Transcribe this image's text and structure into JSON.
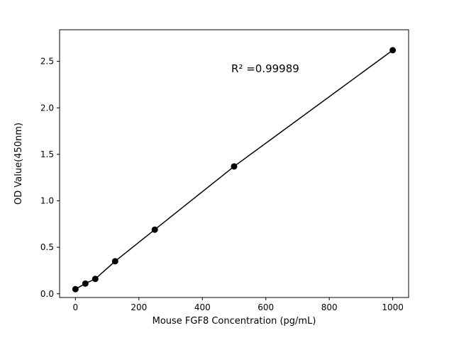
{
  "figure": {
    "background": "#ffffff",
    "frame_color": "#000000"
  },
  "chart_data": {
    "type": "scatter",
    "x": [
      0,
      31.25,
      62.5,
      125,
      250,
      500,
      1000
    ],
    "y": [
      0.05,
      0.11,
      0.16,
      0.35,
      0.69,
      1.37,
      2.62
    ],
    "title": "",
    "xlabel": "Mouse FGF8 Concentration (pg/mL)",
    "ylabel": "OD Value(450nm)",
    "xlim": [
      -50,
      1050
    ],
    "ylim": [
      -0.04,
      2.84
    ],
    "xticks": [
      0,
      200,
      400,
      600,
      800,
      1000
    ],
    "xtick_labels": [
      "0",
      "200",
      "400",
      "600",
      "800",
      "1000"
    ],
    "yticks": [
      0.0,
      0.5,
      1.0,
      1.5,
      2.0,
      2.5
    ],
    "ytick_labels": [
      "0.0",
      "0.5",
      "1.0",
      "1.5",
      "2.0",
      "2.5"
    ],
    "grid": false,
    "legend": null,
    "line_color": "#000000",
    "marker_color": "#000000",
    "annotation": {
      "text": "R² =0.99989",
      "x": 500,
      "y": 2.4
    }
  }
}
